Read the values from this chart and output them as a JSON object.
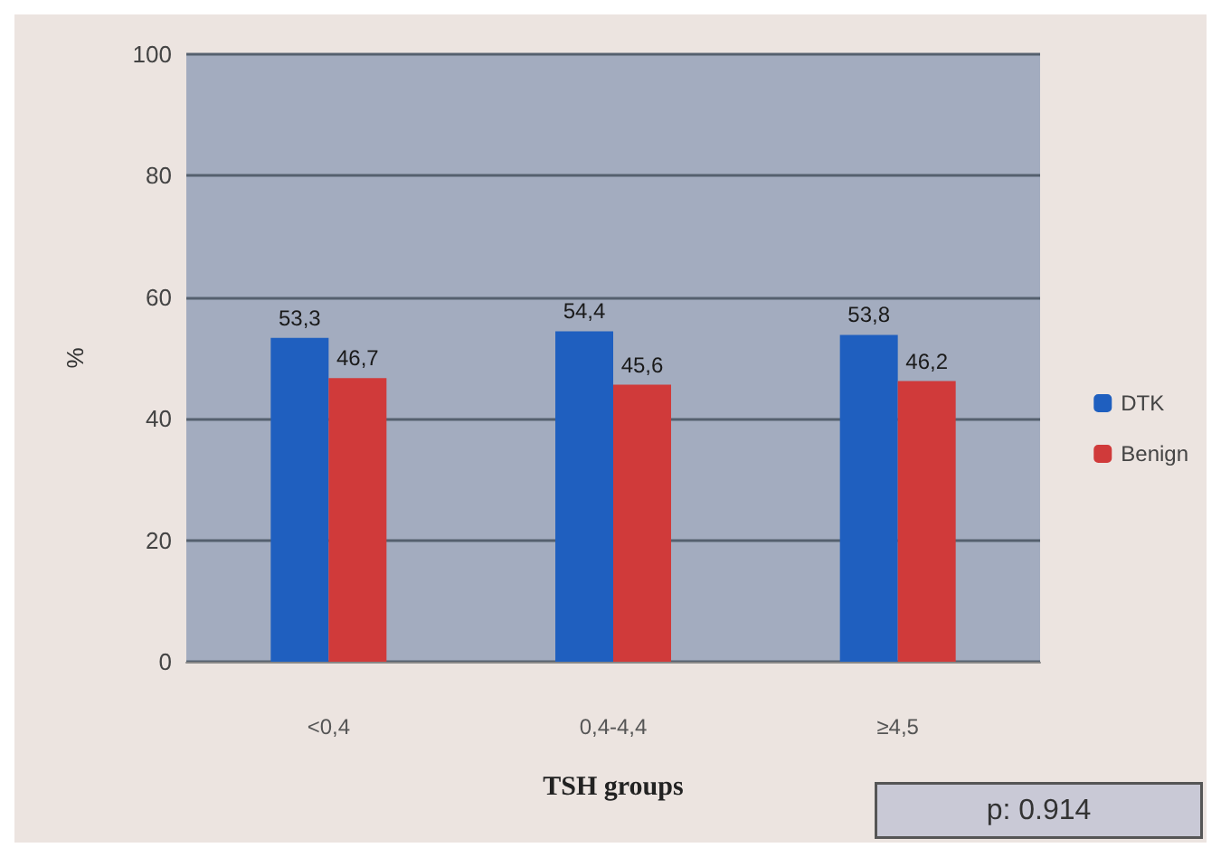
{
  "chart_data": {
    "type": "bar",
    "xlabel": "TSH groups",
    "ylabel": "%",
    "categories": [
      "<0,4",
      "0,4-4,4",
      "≥4,5"
    ],
    "series": [
      {
        "name": "DTK",
        "color": "#1f5fbf",
        "values": [
          53.3,
          54.4,
          53.8
        ],
        "value_labels": [
          "53,3",
          "54,4",
          "53,8"
        ]
      },
      {
        "name": "Benign",
        "color": "#d03a3a",
        "values": [
          46.7,
          45.6,
          46.2
        ],
        "value_labels": [
          "46,7",
          "45,6",
          "46,2"
        ]
      }
    ],
    "ylim": [
      0,
      100
    ],
    "yticks": [
      0,
      20,
      40,
      60,
      80,
      100
    ],
    "grid": "y",
    "legend": "right",
    "annotations": [
      "p: 0.914"
    ]
  }
}
